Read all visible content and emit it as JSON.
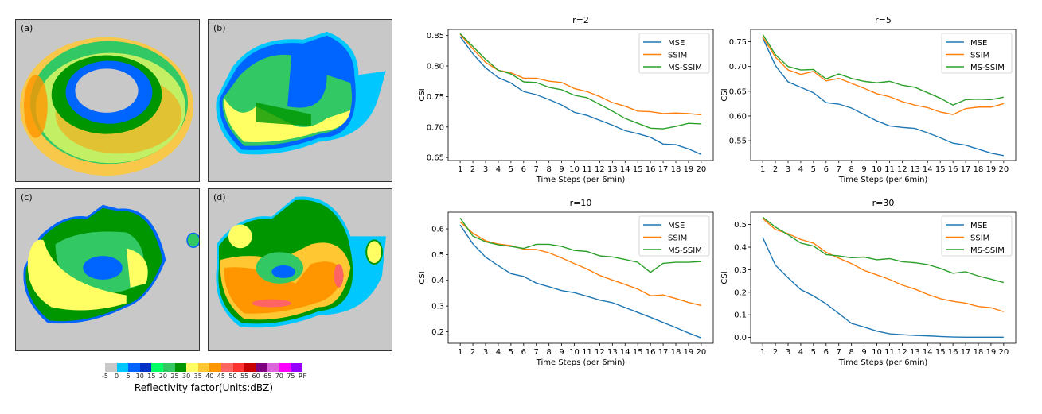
{
  "radar_panels": [
    {
      "label": "(a)"
    },
    {
      "label": "(b)"
    },
    {
      "label": "(c)"
    },
    {
      "label": "(d)"
    }
  ],
  "colorbar": {
    "label": "Reflectivity factor(Units:dBZ)",
    "ticks": [
      "-5",
      "0",
      "5",
      "10",
      "15",
      "20",
      "25",
      "30",
      "35",
      "40",
      "45",
      "50",
      "55",
      "60",
      "65",
      "70",
      "75",
      "RF"
    ],
    "colors": [
      "#c8c8c8",
      "#00c8ff",
      "#0064ff",
      "#0032c8",
      "#00ff64",
      "#32c864",
      "#009600",
      "#ffff64",
      "#ffc832",
      "#ff9600",
      "#ff6464",
      "#ff3232",
      "#c80000",
      "#800080",
      "#dc64dc",
      "#ff00ff",
      "#9600ff"
    ]
  },
  "chart_data": [
    {
      "type": "line",
      "title": "r=2",
      "xlabel": "Time Steps (per 6min)",
      "ylabel": "CSI",
      "x": [
        1,
        2,
        3,
        4,
        5,
        6,
        7,
        8,
        9,
        10,
        11,
        12,
        13,
        14,
        15,
        16,
        17,
        18,
        19,
        20
      ],
      "ylim": [
        0.645,
        0.86
      ],
      "yticks": [
        0.65,
        0.7,
        0.75,
        0.8,
        0.85
      ],
      "ytick_labels": [
        "0.65",
        "0.70",
        "0.75",
        "0.80",
        "0.85"
      ],
      "legend": "top-right",
      "series": [
        {
          "name": "MSE",
          "color": "#1f77b4",
          "values": [
            0.848,
            0.82,
            0.797,
            0.781,
            0.772,
            0.758,
            0.753,
            0.745,
            0.736,
            0.724,
            0.719,
            0.711,
            0.703,
            0.694,
            0.689,
            0.683,
            0.672,
            0.671,
            0.664,
            0.655
          ]
        },
        {
          "name": "SSIM",
          "color": "#ff7f0e",
          "values": [
            0.852,
            0.828,
            0.806,
            0.793,
            0.789,
            0.78,
            0.78,
            0.775,
            0.773,
            0.763,
            0.758,
            0.75,
            0.74,
            0.734,
            0.726,
            0.725,
            0.722,
            0.723,
            0.722,
            0.72
          ]
        },
        {
          "name": "MS-SSIM",
          "color": "#2ca02c",
          "values": [
            0.853,
            0.832,
            0.811,
            0.793,
            0.787,
            0.774,
            0.773,
            0.765,
            0.761,
            0.752,
            0.748,
            0.737,
            0.726,
            0.714,
            0.706,
            0.698,
            0.697,
            0.701,
            0.706,
            0.705
          ]
        }
      ]
    },
    {
      "type": "line",
      "title": "r=5",
      "xlabel": "Time Steps (per 6min)",
      "ylabel": "CSI",
      "x": [
        1,
        2,
        3,
        4,
        5,
        6,
        7,
        8,
        9,
        10,
        11,
        12,
        13,
        14,
        15,
        16,
        17,
        18,
        19,
        20
      ],
      "ylim": [
        0.51,
        0.775
      ],
      "yticks": [
        0.55,
        0.6,
        0.65,
        0.7,
        0.75
      ],
      "ytick_labels": [
        "0.55",
        "0.60",
        "0.65",
        "0.70",
        "0.75"
      ],
      "legend": "top-right",
      "series": [
        {
          "name": "MSE",
          "color": "#1f77b4",
          "values": [
            0.758,
            0.702,
            0.669,
            0.658,
            0.647,
            0.627,
            0.624,
            0.616,
            0.603,
            0.59,
            0.58,
            0.577,
            0.575,
            0.566,
            0.556,
            0.545,
            0.541,
            0.533,
            0.525,
            0.52
          ]
        },
        {
          "name": "SSIM",
          "color": "#ff7f0e",
          "values": [
            0.76,
            0.719,
            0.693,
            0.684,
            0.69,
            0.671,
            0.676,
            0.666,
            0.656,
            0.645,
            0.639,
            0.629,
            0.622,
            0.617,
            0.608,
            0.603,
            0.615,
            0.618,
            0.618,
            0.625
          ]
        },
        {
          "name": "MS-SSIM",
          "color": "#2ca02c",
          "values": [
            0.765,
            0.724,
            0.7,
            0.693,
            0.694,
            0.675,
            0.685,
            0.676,
            0.67,
            0.667,
            0.67,
            0.662,
            0.658,
            0.647,
            0.636,
            0.622,
            0.633,
            0.634,
            0.633,
            0.638
          ]
        }
      ]
    },
    {
      "type": "line",
      "title": "r=10",
      "xlabel": "Time Steps (per 6min)",
      "ylabel": "CSI",
      "x": [
        1,
        2,
        3,
        4,
        5,
        6,
        7,
        8,
        9,
        10,
        11,
        12,
        13,
        14,
        15,
        16,
        17,
        18,
        19,
        20
      ],
      "ylim": [
        0.155,
        0.665
      ],
      "yticks": [
        0.2,
        0.3,
        0.4,
        0.5,
        0.6
      ],
      "ytick_labels": [
        "0.2",
        "0.3",
        "0.4",
        "0.5",
        "0.6"
      ],
      "legend": "top-right",
      "series": [
        {
          "name": "MSE",
          "color": "#1f77b4",
          "values": [
            0.615,
            0.542,
            0.49,
            0.457,
            0.426,
            0.415,
            0.389,
            0.375,
            0.36,
            0.352,
            0.338,
            0.323,
            0.313,
            0.294,
            0.275,
            0.256,
            0.236,
            0.216,
            0.195,
            0.176
          ]
        },
        {
          "name": "SSIM",
          "color": "#ff7f0e",
          "values": [
            0.627,
            0.583,
            0.554,
            0.541,
            0.535,
            0.521,
            0.52,
            0.507,
            0.487,
            0.465,
            0.444,
            0.419,
            0.401,
            0.384,
            0.366,
            0.34,
            0.343,
            0.329,
            0.314,
            0.302
          ]
        },
        {
          "name": "MS-SSIM",
          "color": "#2ca02c",
          "values": [
            0.642,
            0.572,
            0.55,
            0.538,
            0.532,
            0.524,
            0.54,
            0.54,
            0.532,
            0.516,
            0.512,
            0.495,
            0.491,
            0.481,
            0.47,
            0.431,
            0.466,
            0.47,
            0.47,
            0.473
          ]
        }
      ]
    },
    {
      "type": "line",
      "title": "r=30",
      "xlabel": "Time Steps (per 6min)",
      "ylabel": "CSI",
      "x": [
        1,
        2,
        3,
        4,
        5,
        6,
        7,
        8,
        9,
        10,
        11,
        12,
        13,
        14,
        15,
        16,
        17,
        18,
        19,
        20
      ],
      "ylim": [
        -0.026,
        0.555
      ],
      "yticks": [
        0.0,
        0.1,
        0.2,
        0.3,
        0.4,
        0.5
      ],
      "ytick_labels": [
        "0.0",
        "0.1",
        "0.2",
        "0.3",
        "0.4",
        "0.5"
      ],
      "legend": "top-right",
      "series": [
        {
          "name": "MSE",
          "color": "#1f77b4",
          "values": [
            0.443,
            0.32,
            0.264,
            0.212,
            0.184,
            0.149,
            0.106,
            0.062,
            0.046,
            0.028,
            0.016,
            0.012,
            0.009,
            0.007,
            0.004,
            0.002,
            0.001,
            0.001,
            0.001,
            0.001
          ]
        },
        {
          "name": "SSIM",
          "color": "#ff7f0e",
          "values": [
            0.527,
            0.478,
            0.46,
            0.434,
            0.418,
            0.377,
            0.351,
            0.327,
            0.297,
            0.277,
            0.257,
            0.232,
            0.214,
            0.191,
            0.172,
            0.16,
            0.152,
            0.137,
            0.132,
            0.114
          ]
        },
        {
          "name": "MS-SSIM",
          "color": "#2ca02c",
          "values": [
            0.533,
            0.489,
            0.455,
            0.418,
            0.405,
            0.367,
            0.361,
            0.353,
            0.356,
            0.344,
            0.349,
            0.335,
            0.331,
            0.323,
            0.306,
            0.284,
            0.291,
            0.272,
            0.258,
            0.243
          ]
        }
      ]
    }
  ]
}
